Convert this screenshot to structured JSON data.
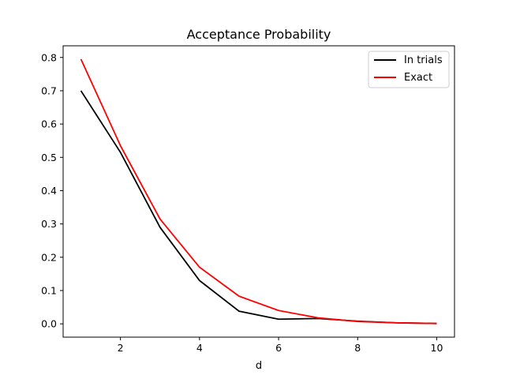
{
  "chart_data": {
    "type": "line",
    "title": "Acceptance Probability",
    "xlabel": "d",
    "ylabel": "",
    "xlim": [
      0.55,
      10.45
    ],
    "ylim": [
      -0.04,
      0.835
    ],
    "xticks": [
      2,
      4,
      6,
      8,
      10
    ],
    "yticks": [
      0.0,
      0.1,
      0.2,
      0.3,
      0.4,
      0.5,
      0.6,
      0.7,
      0.8
    ],
    "ytick_labels": [
      "0.0",
      "0.1",
      "0.2",
      "0.3",
      "0.4",
      "0.5",
      "0.6",
      "0.7",
      "0.8"
    ],
    "x": [
      1,
      2,
      3,
      4,
      5,
      6,
      7,
      8,
      9,
      10
    ],
    "series": [
      {
        "name": "In trials",
        "color": "#000000",
        "values": [
          0.7,
          0.515,
          0.29,
          0.13,
          0.038,
          0.014,
          0.016,
          0.008,
          0.003,
          0.001
        ]
      },
      {
        "name": "Exact",
        "color": "#ff0000",
        "values": [
          0.795,
          0.535,
          0.315,
          0.17,
          0.083,
          0.04,
          0.018,
          0.007,
          0.003,
          0.001
        ]
      }
    ],
    "legend_position": "top-right",
    "grid": false
  }
}
